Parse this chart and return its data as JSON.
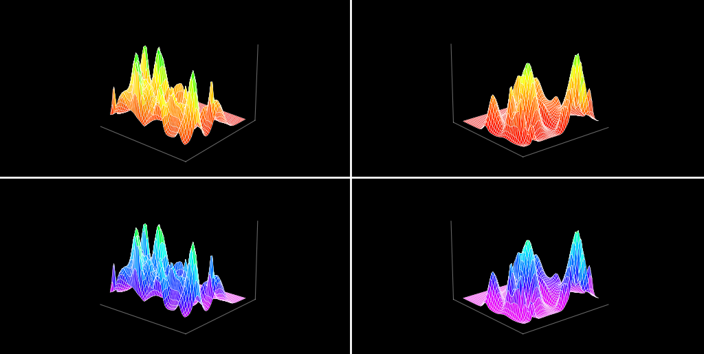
{
  "background_color": "#000000",
  "divider_color": "#ffffff",
  "n_time": 60,
  "n_freq": 40,
  "panels": [
    {
      "id": "top_left",
      "colormap": "hot_custom",
      "elev": 25,
      "azim": -50,
      "bass_heavy": true,
      "amplitude_scale": 1.4,
      "seed": 42
    },
    {
      "id": "top_right",
      "colormap": "hot_custom",
      "elev": 20,
      "azim": -130,
      "bass_heavy": false,
      "amplitude_scale": 1.2,
      "seed": 123
    },
    {
      "id": "bottom_left",
      "colormap": "cool_custom",
      "elev": 20,
      "azim": -50,
      "bass_heavy": true,
      "amplitude_scale": 1.4,
      "seed": 42
    },
    {
      "id": "bottom_right",
      "colormap": "cool_custom",
      "elev": 20,
      "azim": -130,
      "bass_heavy": false,
      "amplitude_scale": 1.2,
      "seed": 123
    }
  ]
}
